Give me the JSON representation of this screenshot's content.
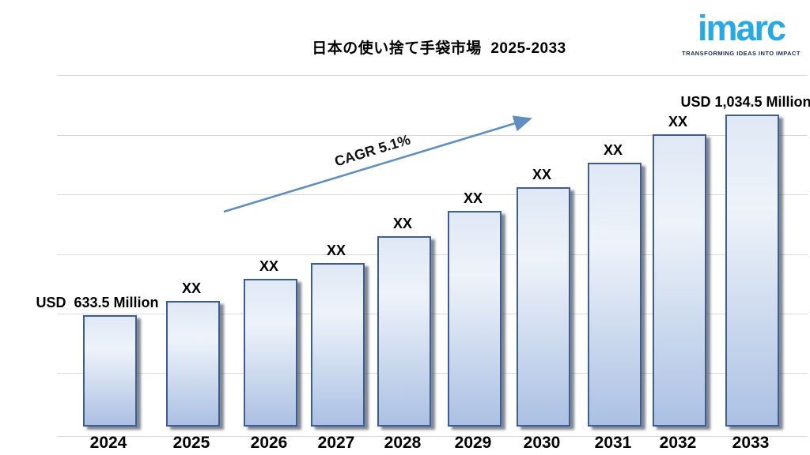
{
  "title": "日本の使い捨て手袋市場  2025-2033",
  "logo": {
    "brand": "imarc",
    "tagline": "TRANSFORMING IDEAS INTO IMPACT",
    "brand_color": "#29a9e1",
    "tagline_color": "#1b2b4d"
  },
  "annotations": {
    "cagr": "CAGR 5.1%",
    "first_value_label": "USD  633.5 Million",
    "last_value_label": "USD 1,034.5 Million",
    "masked_value": "XX"
  },
  "colors": {
    "bar_fill_top": "#eef3fa",
    "bar_fill_bottom": "#abc0e4",
    "bar_border": "#3e5e92",
    "gridline": "#d9d9d9",
    "arrow": "#5f8fbe",
    "logo_blue": "#29a9e1",
    "text": "#000000"
  },
  "chart_data": {
    "type": "bar",
    "title": "日本の使い捨て手袋市場 2025-2033",
    "categories": [
      "2024",
      "2025",
      "2026",
      "2027",
      "2028",
      "2029",
      "2030",
      "2031",
      "2032",
      "2033"
    ],
    "values": [
      633.5,
      "XX",
      "XX",
      "XX",
      "XX",
      "XX",
      "XX",
      "XX",
      "XX",
      1034.5
    ],
    "bar_labels": [
      "USD  633.5 Million",
      "XX",
      "XX",
      "XX",
      "XX",
      "XX",
      "XX",
      "XX",
      "XX",
      "USD 1,034.5 Million"
    ],
    "unit": "USD Million",
    "cagr_percent": 5.1,
    "cagr_label": "CAGR 5.1%",
    "xlabel": "",
    "ylabel": "",
    "grid": "horizontal",
    "legend": "none"
  }
}
